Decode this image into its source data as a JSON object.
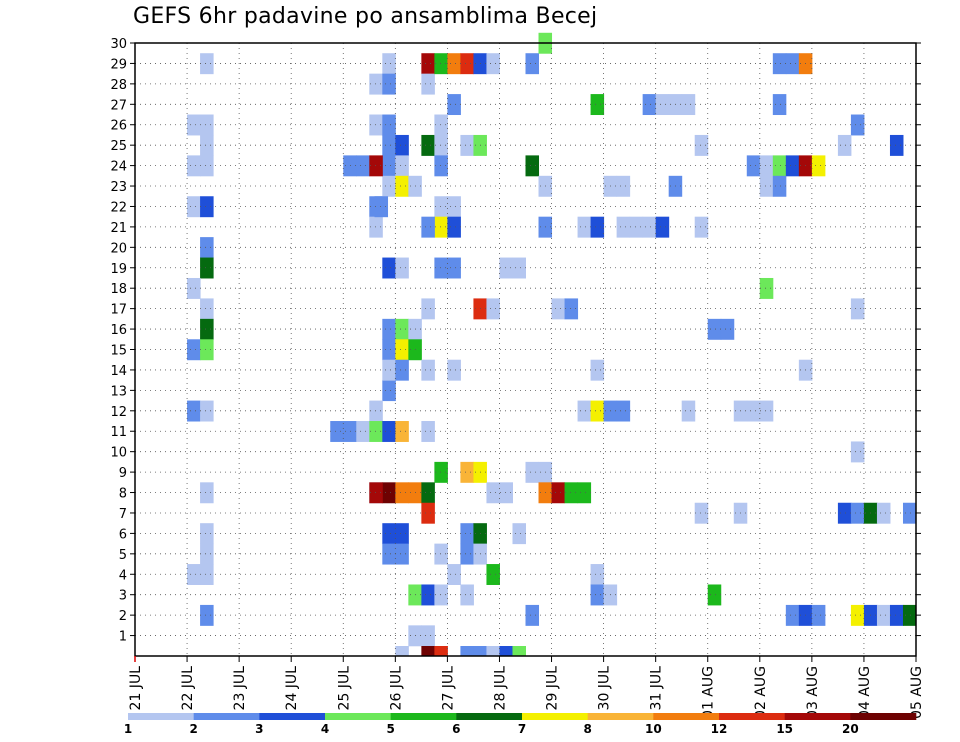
{
  "chart_data": {
    "type": "heatmap",
    "title": "GEFS 6hr padavine po ansamblima Becej",
    "x_ticks": [
      "21 JUL",
      "22 JUL",
      "23 JUL",
      "24 JUL",
      "25 JUL",
      "26 JUL",
      "27 JUL",
      "28 JUL",
      "29 JUL",
      "30 JUL",
      "31 JUL",
      "01 AUG",
      "02 AUG",
      "03 AUG",
      "04 AUG",
      "05 AUG"
    ],
    "y_ticks": [
      "1",
      "2",
      "3",
      "4",
      "5",
      "6",
      "7",
      "8",
      "9",
      "10",
      "11",
      "12",
      "13",
      "14",
      "15",
      "16",
      "17",
      "18",
      "19",
      "20",
      "21",
      "22",
      "23",
      "24",
      "25",
      "26",
      "27",
      "28",
      "29",
      "30"
    ],
    "time_steps_per_day": 4,
    "grid": true,
    "legend": {
      "placement": "bottom",
      "labels": [
        "1",
        "2",
        "3",
        "4",
        "5",
        "6",
        "7",
        "8",
        "10",
        "12",
        "15",
        "20"
      ],
      "colors": [
        "#b4c6f0",
        "#5f8cea",
        "#1f4fd8",
        "#6ce85a",
        "#1cb81c",
        "#056a10",
        "#f4f000",
        "#f9b437",
        "#f27d0e",
        "#dc2c10",
        "#a40808",
        "#6e0202"
      ]
    },
    "cells": [
      [
        22.25,
        29,
        0
      ],
      [
        22,
        26,
        0
      ],
      [
        22.25,
        26,
        0
      ],
      [
        22.25,
        25,
        0
      ],
      [
        22,
        24,
        0
      ],
      [
        22.25,
        24,
        0
      ],
      [
        22,
        22,
        0
      ],
      [
        22.25,
        22,
        2
      ],
      [
        22.25,
        20,
        1
      ],
      [
        22.25,
        19,
        5
      ],
      [
        22,
        18,
        0
      ],
      [
        22.25,
        17,
        0
      ],
      [
        22.25,
        16,
        5
      ],
      [
        22,
        15,
        1
      ],
      [
        22.25,
        15,
        3
      ],
      [
        22,
        12,
        1
      ],
      [
        22.25,
        12,
        0
      ],
      [
        22.25,
        8,
        0
      ],
      [
        22.25,
        6,
        0
      ],
      [
        22.25,
        5,
        0
      ],
      [
        22,
        4,
        0
      ],
      [
        22.25,
        4,
        0
      ],
      [
        22.25,
        2,
        1
      ],
      [
        24.75,
        11,
        1
      ],
      [
        25,
        11,
        1
      ],
      [
        25.25,
        11,
        0
      ],
      [
        25,
        24,
        1
      ],
      [
        25.25,
        24,
        1
      ],
      [
        25.5,
        22,
        1
      ],
      [
        25.5,
        8,
        0
      ],
      [
        25.75,
        29,
        0
      ],
      [
        25.5,
        28,
        0
      ],
      [
        25.75,
        28,
        1
      ],
      [
        25.5,
        26,
        0
      ],
      [
        25.75,
        26,
        1
      ],
      [
        25.75,
        25,
        1
      ],
      [
        25.75,
        24,
        1
      ],
      [
        25.75,
        23,
        0
      ],
      [
        25.5,
        21,
        0
      ],
      [
        25.75,
        19,
        2
      ],
      [
        25.75,
        16,
        1
      ],
      [
        25.75,
        15,
        1
      ],
      [
        25.75,
        13,
        1
      ],
      [
        25.5,
        12,
        0
      ],
      [
        25.5,
        11,
        3
      ],
      [
        25.75,
        11,
        2
      ],
      [
        25.75,
        6,
        2
      ],
      [
        25.75,
        5,
        1
      ],
      [
        25.75,
        8,
        11
      ],
      [
        25.5,
        8,
        10
      ],
      [
        25.5,
        24,
        10
      ],
      [
        25.75,
        14,
        0
      ],
      [
        25.6,
        22,
        1
      ],
      [
        26,
        25,
        2
      ],
      [
        26,
        24,
        0
      ],
      [
        26,
        23,
        6
      ],
      [
        26.25,
        23,
        0
      ],
      [
        26,
        19,
        0
      ],
      [
        26,
        16,
        3
      ],
      [
        26.25,
        16,
        0
      ],
      [
        26,
        15,
        6
      ],
      [
        26.25,
        15,
        4
      ],
      [
        26,
        14,
        1
      ],
      [
        26,
        11,
        7
      ],
      [
        26,
        8,
        8
      ],
      [
        26.25,
        8,
        8
      ],
      [
        26,
        6,
        2
      ],
      [
        26,
        5,
        1
      ],
      [
        26.25,
        3,
        3
      ],
      [
        26.5,
        3,
        2
      ],
      [
        26.25,
        1,
        0
      ],
      [
        26.5,
        1,
        0
      ],
      [
        26.5,
        29,
        10
      ],
      [
        26.5,
        28,
        0
      ],
      [
        26.5,
        17,
        0
      ],
      [
        26.5,
        14,
        0
      ],
      [
        26.5,
        11,
        0
      ],
      [
        26.5,
        8,
        5
      ],
      [
        26.5,
        7,
        9
      ],
      [
        26.5,
        25,
        5
      ],
      [
        26.75,
        25,
        0
      ],
      [
        26.75,
        29,
        4
      ],
      [
        27,
        29,
        8
      ],
      [
        27.25,
        29,
        9
      ],
      [
        27.5,
        29,
        2
      ],
      [
        27.75,
        29,
        0
      ],
      [
        26.75,
        26,
        0
      ],
      [
        26.75,
        24,
        1
      ],
      [
        26.75,
        22,
        0
      ],
      [
        27,
        22,
        0
      ],
      [
        26.75,
        21,
        6
      ],
      [
        27,
        21,
        2
      ],
      [
        26.5,
        21,
        1
      ],
      [
        26.75,
        19,
        1
      ],
      [
        27,
        19,
        1
      ],
      [
        27,
        27,
        1
      ],
      [
        27.25,
        25,
        0
      ],
      [
        27.5,
        25,
        3
      ],
      [
        26.75,
        9,
        4
      ],
      [
        27.25,
        9,
        7
      ],
      [
        27.5,
        9,
        6
      ],
      [
        27,
        14,
        0
      ],
      [
        27.5,
        17,
        9
      ],
      [
        27.75,
        17,
        0
      ],
      [
        27,
        4,
        0
      ],
      [
        26.75,
        5,
        0
      ],
      [
        27.25,
        6,
        1
      ],
      [
        27.5,
        6,
        5
      ],
      [
        27.25,
        5,
        1
      ],
      [
        27.5,
        5,
        0
      ],
      [
        27.75,
        4,
        4
      ],
      [
        27.25,
        3,
        0
      ],
      [
        27.75,
        8,
        0
      ],
      [
        28,
        8,
        0
      ],
      [
        28,
        19,
        0
      ],
      [
        28.25,
        19,
        0
      ],
      [
        28.25,
        6,
        0
      ],
      [
        26.75,
        3,
        0
      ],
      [
        28.5,
        29,
        1
      ],
      [
        28.75,
        30,
        3
      ],
      [
        28.5,
        24,
        5
      ],
      [
        28.75,
        23,
        0
      ],
      [
        28.75,
        21,
        1
      ],
      [
        28.5,
        9,
        0
      ],
      [
        28.75,
        9,
        0
      ],
      [
        28.75,
        8,
        8
      ],
      [
        29,
        8,
        10
      ],
      [
        29.25,
        8,
        4
      ],
      [
        29.5,
        8,
        4
      ],
      [
        29,
        17,
        0
      ],
      [
        29.25,
        17,
        1
      ],
      [
        29.5,
        12,
        0
      ],
      [
        29.75,
        12,
        6
      ],
      [
        28.5,
        2,
        1
      ],
      [
        29.75,
        27,
        4
      ],
      [
        29.5,
        21,
        0
      ],
      [
        29.75,
        21,
        2
      ],
      [
        30,
        23,
        0
      ],
      [
        30.25,
        23,
        0
      ],
      [
        30.25,
        21,
        0
      ],
      [
        30.5,
        21,
        0
      ],
      [
        30.75,
        21,
        0
      ],
      [
        31,
        21,
        2
      ],
      [
        30,
        12,
        1
      ],
      [
        30.25,
        12,
        1
      ],
      [
        29.75,
        14,
        0
      ],
      [
        29.75,
        4,
        0
      ],
      [
        29.75,
        3,
        1
      ],
      [
        30,
        3,
        0
      ],
      [
        30.75,
        27,
        1
      ],
      [
        31,
        27,
        0
      ],
      [
        31.25,
        27,
        0
      ],
      [
        31.5,
        27,
        0
      ],
      [
        31.25,
        23,
        1
      ],
      [
        31.5,
        12,
        0
      ],
      [
        31.75,
        21,
        0
      ],
      [
        31.75,
        25,
        0
      ],
      [
        31.75,
        7,
        0
      ],
      [
        32,
        16,
        1
      ],
      [
        32.25,
        16,
        1
      ],
      [
        32,
        3,
        4
      ],
      [
        32.5,
        12,
        0
      ],
      [
        32.75,
        12,
        0
      ],
      [
        33,
        12,
        0
      ],
      [
        32.5,
        7,
        0
      ],
      [
        32.75,
        24,
        1
      ],
      [
        33,
        24,
        0
      ],
      [
        33.25,
        24,
        3
      ],
      [
        33.5,
        24,
        2
      ],
      [
        33.75,
        24,
        10
      ],
      [
        34,
        24,
        6
      ],
      [
        33,
        23,
        0
      ],
      [
        33.25,
        23,
        1
      ],
      [
        33,
        18,
        3
      ],
      [
        33.25,
        29,
        1
      ],
      [
        33.5,
        29,
        1
      ],
      [
        33.75,
        29,
        8
      ],
      [
        33.25,
        27,
        1
      ],
      [
        33.75,
        14,
        0
      ],
      [
        33.5,
        2,
        1
      ],
      [
        33.75,
        2,
        2
      ],
      [
        34,
        2,
        1
      ],
      [
        34.75,
        2,
        6
      ],
      [
        35,
        2,
        2
      ],
      [
        35.25,
        2,
        0
      ],
      [
        35.5,
        2,
        2
      ],
      [
        35.75,
        2,
        5
      ],
      [
        34.5,
        7,
        2
      ],
      [
        34.75,
        7,
        1
      ],
      [
        35,
        7,
        5
      ],
      [
        35.25,
        7,
        0
      ],
      [
        35.75,
        7,
        1
      ],
      [
        34.75,
        26,
        1
      ],
      [
        34.5,
        25,
        0
      ],
      [
        35.5,
        25,
        2
      ],
      [
        34.75,
        17,
        0
      ],
      [
        34.75,
        10,
        0
      ]
    ],
    "bottom_row_cells": [
      [
        26,
        0
      ],
      [
        26.5,
        11
      ],
      [
        26.75,
        9
      ],
      [
        27.25,
        1
      ],
      [
        27.5,
        1
      ],
      [
        27.75,
        0
      ],
      [
        28,
        2
      ],
      [
        28.25,
        3
      ]
    ]
  }
}
